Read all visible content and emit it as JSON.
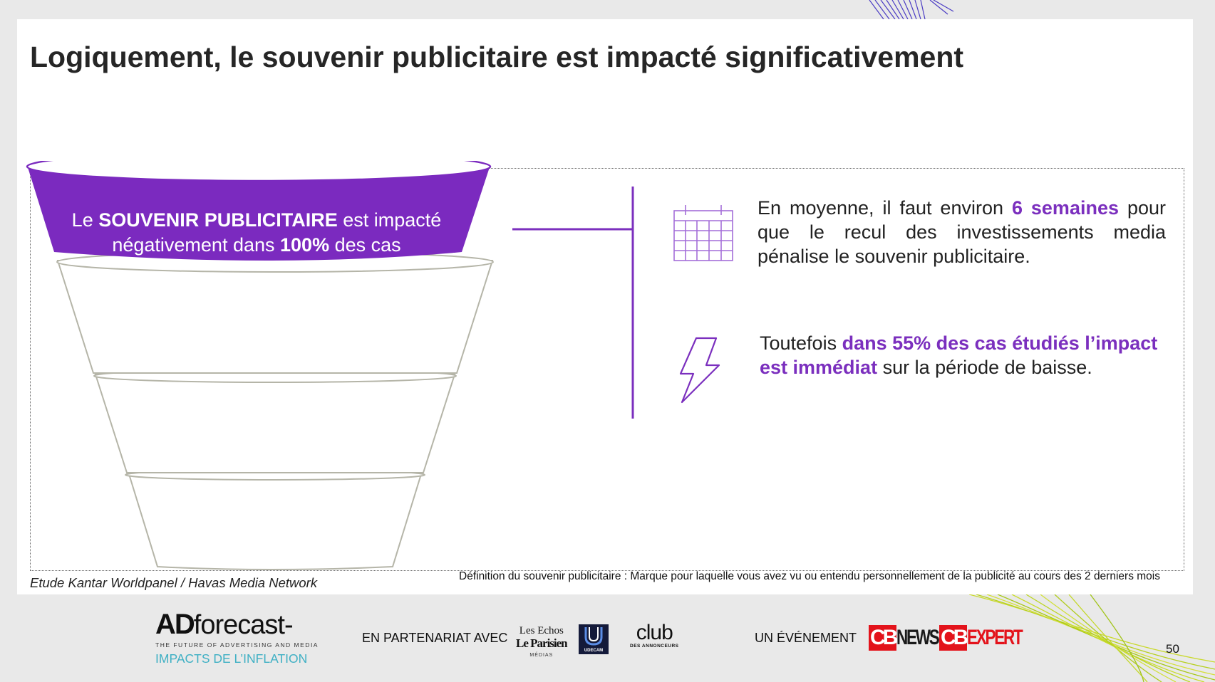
{
  "slide": {
    "title": "Logiquement, le souvenir publicitaire est impacté significativement",
    "funnel": {
      "text_before": "Le ",
      "text_bold1": "SOUVENIR PUBLICITAIRE",
      "text_mid": " est impacté négativement dans ",
      "text_bold2": "100%",
      "text_after": " des cas",
      "top_color": "#7b2abf"
    },
    "points": [
      {
        "icon": "calendar-icon",
        "before": "En moyenne, il faut environ ",
        "highlight": "6 semaines",
        "after": " pour que le recul des investissements media pénalise le souvenir publicitaire."
      },
      {
        "icon": "lightning-icon",
        "before": "Toutefois ",
        "highlight": "dans 55% des cas étudiés l’impact est immédiat",
        "after": " sur la période de baisse."
      }
    ],
    "source": "Etude Kantar Worldpanel / Havas Media Network",
    "definition": "Définition du souvenir publicitaire : Marque pour laquelle vous avez vu ou entendu personnellement de la publicité au cours des 2 derniers mois",
    "accent_color": "#7b2fbe"
  },
  "footer": {
    "logo_ad": "AD",
    "logo_forecast": "forecast-",
    "logo_tagline": "THE FUTURE OF ADVERTISING AND MEDIA",
    "logo_subtitle": "IMPACTS DE L’INFLATION",
    "partnership_label": "EN PARTENARIAT AVEC",
    "partners": {
      "lesechos_line1": "Les Echos",
      "lesechos_line2": "Le Parisien",
      "lesechos_line3": "MÉDIAS",
      "udecam": "UDECAM",
      "club": "club",
      "club_sub": "DES ANNONCEURS"
    },
    "event_label": "UN ÉVÉNEMENT",
    "cbnews_cb": "CB",
    "cbnews_word": "NEWS",
    "cbexpert_cb": "CB",
    "cbexpert_word": "EXPERT",
    "page_number": "50"
  }
}
